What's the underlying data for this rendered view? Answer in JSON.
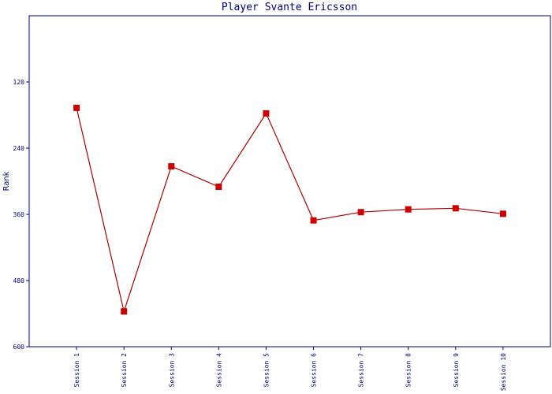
{
  "chart_data": {
    "type": "line",
    "title": "Player Svante Ericsson",
    "y_label": "Rank",
    "categories": [
      "Session 1",
      "Session 2",
      "Session 3",
      "Session 4",
      "Session 5",
      "Session 6",
      "Session 7",
      "Session 8",
      "Session 9",
      "Session 10"
    ],
    "series": [
      {
        "name": "Rank",
        "color": "#aa0000",
        "values": [
          167,
          536,
          273,
          310,
          177,
          371,
          356,
          351,
          349,
          359
        ]
      }
    ],
    "ylim": [
      0,
      600
    ],
    "yticks": [
      120,
      240,
      360,
      480,
      600
    ],
    "y_inverted": true,
    "axis_color": "#000080",
    "marker_color": "#cc0000"
  }
}
